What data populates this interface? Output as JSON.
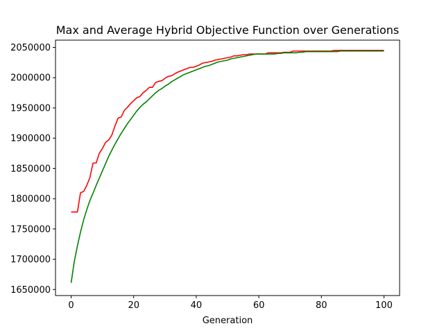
{
  "chart_data": {
    "type": "line",
    "title": "Max and Average Hybrid Objective Function over Generations",
    "xlabel": "Generation",
    "ylabel": "",
    "xlim": [
      -5,
      105
    ],
    "ylim": [
      1640000,
      2062000
    ],
    "x_ticks": [
      0,
      20,
      40,
      60,
      80,
      100
    ],
    "y_ticks": [
      1650000,
      1700000,
      1750000,
      1800000,
      1850000,
      1900000,
      1950000,
      2000000,
      2050000
    ],
    "grid": false,
    "legend": "none",
    "series": [
      {
        "color": "#ff0000",
        "x": [
          0,
          1,
          2,
          3,
          4,
          5,
          6,
          7,
          8,
          9,
          10,
          11,
          12,
          13,
          14,
          15,
          16,
          17,
          18,
          19,
          20,
          21,
          22,
          23,
          24,
          25,
          26,
          27,
          28,
          29,
          30,
          31,
          32,
          33,
          34,
          35,
          36,
          37,
          38,
          39,
          40,
          41,
          42,
          43,
          44,
          45,
          46,
          47,
          48,
          49,
          50,
          51,
          52,
          53,
          54,
          55,
          56,
          57,
          58,
          59,
          60,
          61,
          62,
          63,
          64,
          65,
          66,
          67,
          68,
          69,
          70,
          71,
          72,
          73,
          74,
          75,
          76,
          77,
          78,
          79,
          80,
          81,
          82,
          83,
          84,
          85,
          86,
          87,
          88,
          89,
          90,
          91,
          92,
          93,
          94,
          95,
          96,
          97,
          98,
          99,
          100
        ],
        "y": [
          1778000,
          1778000,
          1778000,
          1810000,
          1812000,
          1822000,
          1835000,
          1859000,
          1859000,
          1875000,
          1883000,
          1893000,
          1897000,
          1905000,
          1920000,
          1933000,
          1935000,
          1946000,
          1951000,
          1957000,
          1962000,
          1967000,
          1969000,
          1975000,
          1979000,
          1984000,
          1984000,
          1992000,
          1994000,
          1995000,
          1999000,
          2002000,
          2003000,
          2006000,
          2009000,
          2011000,
          2013000,
          2015000,
          2017000,
          2017000,
          2019000,
          2021000,
          2024000,
          2025000,
          2026000,
          2027000,
          2029000,
          2030000,
          2031000,
          2032000,
          2033000,
          2034000,
          2036000,
          2036000,
          2037000,
          2038000,
          2038000,
          2039000,
          2039000,
          2039000,
          2039000,
          2039000,
          2039000,
          2041000,
          2041000,
          2041000,
          2041000,
          2041000,
          2042000,
          2042000,
          2042000,
          2044000,
          2044000,
          2044000,
          2044000,
          2044000,
          2044000,
          2044000,
          2044000,
          2044000,
          2044000,
          2044000,
          2044000,
          2044000,
          2045000,
          2045000,
          2045000,
          2045000,
          2045000,
          2045000,
          2045000,
          2045000,
          2045000,
          2045000,
          2045000,
          2045000,
          2045000,
          2045000,
          2045000,
          2045000,
          2045000
        ]
      },
      {
        "color": "#008000",
        "x": [
          0,
          1,
          2,
          3,
          4,
          5,
          6,
          7,
          8,
          9,
          10,
          11,
          12,
          13,
          14,
          15,
          16,
          17,
          18,
          19,
          20,
          21,
          22,
          23,
          24,
          25,
          26,
          27,
          28,
          29,
          30,
          31,
          32,
          33,
          34,
          35,
          36,
          37,
          38,
          39,
          40,
          41,
          42,
          43,
          44,
          45,
          46,
          47,
          48,
          49,
          50,
          51,
          52,
          53,
          54,
          55,
          56,
          57,
          58,
          59,
          60,
          61,
          62,
          63,
          64,
          65,
          66,
          67,
          68,
          69,
          70,
          71,
          72,
          73,
          74,
          75,
          76,
          77,
          78,
          79,
          80,
          81,
          82,
          83,
          84,
          85,
          86,
          87,
          88,
          89,
          90,
          91,
          92,
          93,
          94,
          95,
          96,
          97,
          98,
          99,
          100
        ],
        "y": [
          1661000,
          1696000,
          1722000,
          1745000,
          1765000,
          1782000,
          1797000,
          1809000,
          1822000,
          1834000,
          1846000,
          1858000,
          1870000,
          1880000,
          1890000,
          1899000,
          1908000,
          1916000,
          1924000,
          1931000,
          1938000,
          1945000,
          1951000,
          1956000,
          1960000,
          1965000,
          1970000,
          1975000,
          1979000,
          1982000,
          1986000,
          1989000,
          1993000,
          1996000,
          1999000,
          2002000,
          2005000,
          2007000,
          2009000,
          2011000,
          2013000,
          2015000,
          2017000,
          2019000,
          2020000,
          2022000,
          2024000,
          2026000,
          2027000,
          2028000,
          2029000,
          2031000,
          2032000,
          2033000,
          2034000,
          2035000,
          2036000,
          2037000,
          2038000,
          2039000,
          2039000,
          2039000,
          2039000,
          2039000,
          2039000,
          2039000,
          2040000,
          2040000,
          2041000,
          2041000,
          2041000,
          2041000,
          2041000,
          2042000,
          2042000,
          2043000,
          2043000,
          2043000,
          2043000,
          2043000,
          2043000,
          2043000,
          2043000,
          2043000,
          2043000,
          2043000,
          2044000,
          2044000,
          2044000,
          2044000,
          2044000,
          2044000,
          2044000,
          2044000,
          2044000,
          2044000,
          2044000,
          2044000,
          2044000,
          2044000,
          2044000
        ]
      }
    ]
  }
}
